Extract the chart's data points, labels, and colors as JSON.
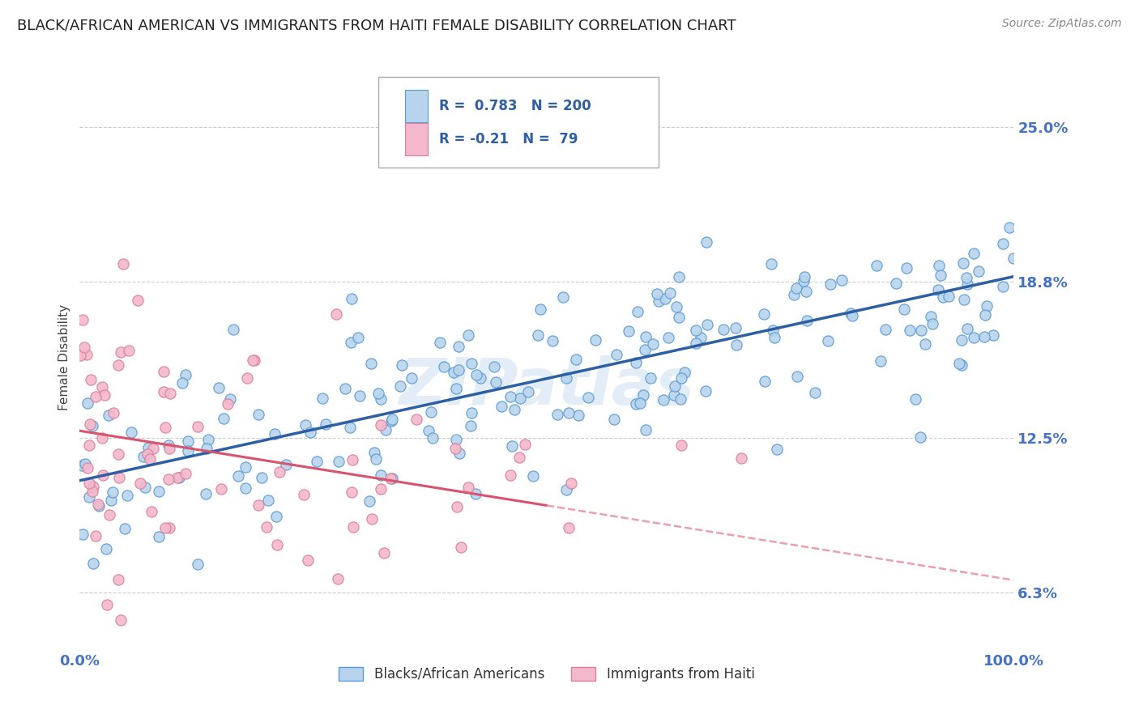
{
  "title": "BLACK/AFRICAN AMERICAN VS IMMIGRANTS FROM HAITI FEMALE DISABILITY CORRELATION CHART",
  "source": "Source: ZipAtlas.com",
  "ylabel": "Female Disability",
  "xlim": [
    0.0,
    1.0
  ],
  "ylim": [
    0.04,
    0.275
  ],
  "yticks": [
    0.063,
    0.125,
    0.188,
    0.25
  ],
  "ytick_labels": [
    "6.3%",
    "12.5%",
    "18.8%",
    "25.0%"
  ],
  "xticks": [
    0.0,
    1.0
  ],
  "xtick_labels": [
    "0.0%",
    "100.0%"
  ],
  "series1_color": "#b8d4ed",
  "series1_edge": "#5b9bd5",
  "series2_color": "#f4b8cc",
  "series2_edge": "#d9819a",
  "line1_color": "#2e5fa3",
  "line2_color_solid": "#d9526e",
  "line2_color_dash": "#e8a0b0",
  "R1": 0.783,
  "N1": 200,
  "R2": -0.21,
  "N2": 79,
  "legend_label1": "Blacks/African Americans",
  "legend_label2": "Immigrants from Haiti",
  "watermark": "ZIPatlas",
  "background_color": "#ffffff",
  "grid_color": "#cccccc",
  "title_color": "#222222",
  "title_fontsize": 13,
  "tick_label_color": "#4472c4",
  "source_color": "#888888",
  "blue_line_y0": 0.108,
  "blue_line_y1": 0.19,
  "pink_line_y0": 0.128,
  "pink_line_y1": 0.068,
  "pink_solid_xend": 0.5
}
